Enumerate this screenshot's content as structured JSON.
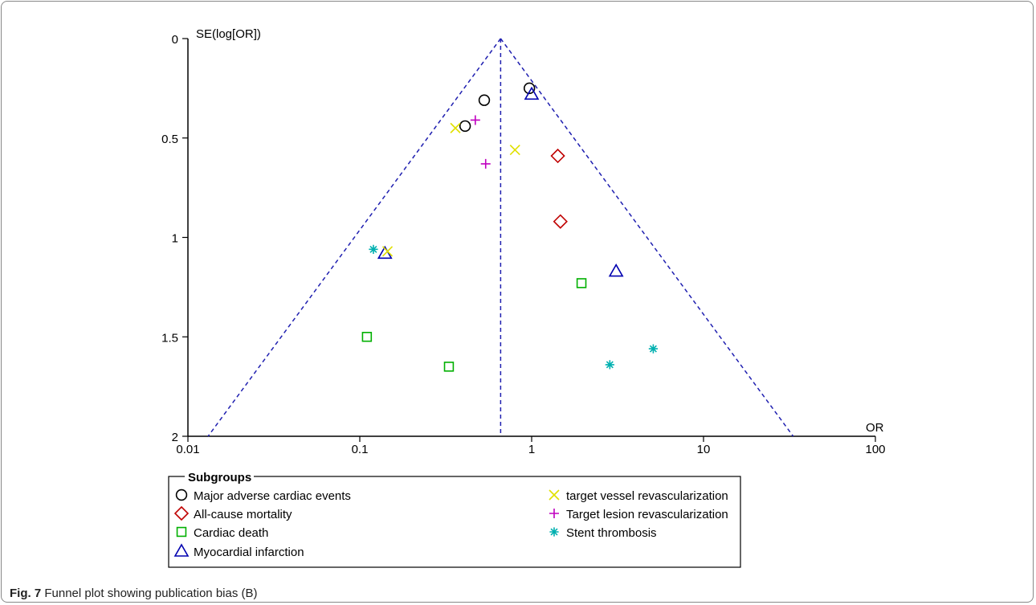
{
  "caption": {
    "label": "Fig. 7",
    "text": "Funnel plot showing publication bias (B)"
  },
  "chart_data": {
    "type": "scatter",
    "ylabel": "SE(log[OR])",
    "xlabel": "OR",
    "x_scale": "log",
    "xlim": [
      0.01,
      100
    ],
    "ylim": [
      0,
      2
    ],
    "y_inverted": true,
    "x_ticks": [
      "0.01",
      "0.1",
      "1",
      "10",
      "100"
    ],
    "y_ticks": [
      "0",
      "0.5",
      "1",
      "1.5",
      "2"
    ],
    "pooled_or": 0.66,
    "legend_title": "Subgroups",
    "legend_position": "bottom",
    "series": [
      {
        "name": "Major adverse cardiac events",
        "marker": "circle",
        "color": "#000000",
        "points": [
          {
            "x": 0.97,
            "y": 0.25
          },
          {
            "x": 0.53,
            "y": 0.31
          },
          {
            "x": 0.41,
            "y": 0.44
          }
        ]
      },
      {
        "name": "All-cause mortality",
        "marker": "diamond",
        "color": "#c00000",
        "points": [
          {
            "x": 1.42,
            "y": 0.59
          },
          {
            "x": 1.47,
            "y": 0.92
          }
        ]
      },
      {
        "name": "Cardiac death",
        "marker": "square",
        "color": "#00b000",
        "points": [
          {
            "x": 1.95,
            "y": 1.23
          },
          {
            "x": 0.11,
            "y": 1.5
          },
          {
            "x": 0.33,
            "y": 1.65
          }
        ]
      },
      {
        "name": "Myocardial infarction",
        "marker": "triangle",
        "color": "#0000b0",
        "points": [
          {
            "x": 1.0,
            "y": 0.28
          },
          {
            "x": 0.14,
            "y": 1.08
          },
          {
            "x": 3.1,
            "y": 1.17
          }
        ]
      },
      {
        "name": "target vessel revascularization",
        "marker": "x",
        "color": "#e0e000",
        "points": [
          {
            "x": 0.36,
            "y": 0.45
          },
          {
            "x": 0.8,
            "y": 0.56
          },
          {
            "x": 0.145,
            "y": 1.07
          }
        ]
      },
      {
        "name": "Target lesion revascularization",
        "marker": "plus",
        "color": "#c000c0",
        "points": [
          {
            "x": 0.47,
            "y": 0.41
          },
          {
            "x": 0.54,
            "y": 0.63
          }
        ]
      },
      {
        "name": "Stent thrombosis",
        "marker": "asterisk",
        "color": "#00b0b0",
        "points": [
          {
            "x": 0.12,
            "y": 1.06
          },
          {
            "x": 5.1,
            "y": 1.56
          },
          {
            "x": 2.85,
            "y": 1.64
          }
        ]
      }
    ]
  }
}
